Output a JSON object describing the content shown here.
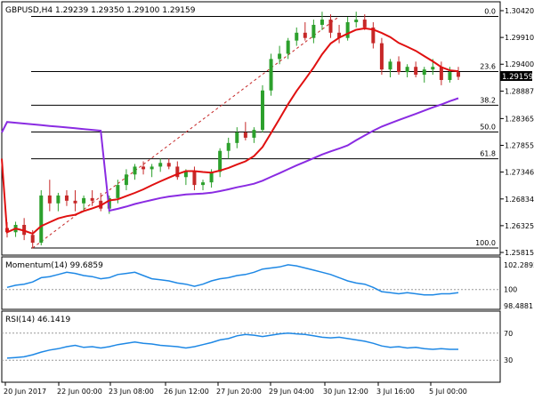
{
  "main_panel": {
    "header": "GBPUSD,H4  1.29239 1.29350 1.29100 1.29159",
    "price_axis": [
      "1.30420",
      "1.29910",
      "1.29400",
      "1.28887",
      "1.28365",
      "1.27855",
      "1.27346",
      "1.26834",
      "1.26325",
      "1.25815"
    ],
    "current_price": "1.29159",
    "fib_labels": [
      "0.0",
      "23.6",
      "38.2",
      "50.0",
      "61.8",
      "100.0"
    ]
  },
  "momentum_panel": {
    "header": "Momentum(14) 99.6859",
    "axis": [
      "102.2892",
      "100",
      "98.4881"
    ]
  },
  "rsi_panel": {
    "header": "RSI(14) 46.1419",
    "axis": [
      "70",
      "30"
    ]
  },
  "time_axis": [
    "20 Jun 2017",
    "22 Jun 00:00",
    "23 Jun 08:00",
    "26 Jun 12:00",
    "27 Jun 20:00",
    "29 Jun 04:00",
    "30 Jun 12:00",
    "3 Jul 16:00",
    "5 Jul 00:00"
  ],
  "colors": {
    "bull_candle": "#2ca02c",
    "bear_candle": "#c62828",
    "ma_fast": "#e01010",
    "ma_slow": "#8a2be2",
    "indicator": "#1e88e5",
    "price_box": "#000000"
  },
  "chart_data": [
    {
      "type": "candlestick",
      "title": "GBPUSD,H4",
      "ylim": [
        1.25815,
        1.3042
      ],
      "moving_averages": [
        "fast (red)",
        "slow (purple)"
      ],
      "fibonacci_levels": [
        {
          "label": "0.0",
          "price": 1.3031
        },
        {
          "label": "23.6",
          "price": 1.2926
        },
        {
          "label": "38.2",
          "price": 1.2862
        },
        {
          "label": "50.0",
          "price": 1.2811
        },
        {
          "label": "61.8",
          "price": 1.276
        },
        {
          "label": "100.0",
          "price": 1.259
        }
      ],
      "last_close": 1.29159,
      "candles": [
        [
          1.2628,
          1.2639,
          1.261,
          1.262
        ],
        [
          1.262,
          1.264,
          1.2611,
          1.2634
        ],
        [
          1.2634,
          1.2647,
          1.2605,
          1.2615
        ],
        [
          1.2615,
          1.2624,
          1.2589,
          1.26
        ],
        [
          1.26,
          1.27,
          1.2595,
          1.269
        ],
        [
          1.269,
          1.272,
          1.266,
          1.2675
        ],
        [
          1.2675,
          1.2695,
          1.266,
          1.269
        ],
        [
          1.269,
          1.27,
          1.267,
          1.268
        ],
        [
          1.268,
          1.27,
          1.266,
          1.2675
        ],
        [
          1.2675,
          1.269,
          1.266,
          1.2685
        ],
        [
          1.2685,
          1.27,
          1.267,
          1.268
        ],
        [
          1.268,
          1.2695,
          1.266,
          1.2665
        ],
        [
          1.2665,
          1.269,
          1.2655,
          1.2685
        ],
        [
          1.2685,
          1.272,
          1.2675,
          1.271
        ],
        [
          1.271,
          1.274,
          1.27,
          1.273
        ],
        [
          1.273,
          1.275,
          1.272,
          1.2745
        ],
        [
          1.2745,
          1.2755,
          1.273,
          1.274
        ],
        [
          1.274,
          1.275,
          1.2725,
          1.2745
        ],
        [
          1.2745,
          1.276,
          1.2735,
          1.2752
        ],
        [
          1.2752,
          1.276,
          1.274,
          1.2745
        ],
        [
          1.2745,
          1.2755,
          1.272,
          1.2725
        ],
        [
          1.2725,
          1.274,
          1.271,
          1.2735
        ],
        [
          1.2735,
          1.2745,
          1.27,
          1.271
        ],
        [
          1.271,
          1.272,
          1.27,
          1.2715
        ],
        [
          1.2715,
          1.274,
          1.2705,
          1.2735
        ],
        [
          1.2735,
          1.278,
          1.2725,
          1.2775
        ],
        [
          1.2775,
          1.28,
          1.276,
          1.279
        ],
        [
          1.279,
          1.282,
          1.278,
          1.281
        ],
        [
          1.281,
          1.283,
          1.2795,
          1.28
        ],
        [
          1.28,
          1.282,
          1.279,
          1.2815
        ],
        [
          1.2815,
          1.29,
          1.281,
          1.289
        ],
        [
          1.289,
          1.296,
          1.288,
          1.295
        ],
        [
          1.295,
          1.2975,
          1.294,
          1.296
        ],
        [
          1.296,
          1.299,
          1.295,
          1.2985
        ],
        [
          1.2985,
          1.301,
          1.2975,
          1.3
        ],
        [
          1.3,
          1.302,
          1.2985,
          1.299
        ],
        [
          1.299,
          1.3025,
          1.298,
          1.3015
        ],
        [
          1.3015,
          1.304,
          1.3005,
          1.3025
        ],
        [
          1.3025,
          1.3035,
          1.299,
          1.3
        ],
        [
          1.3,
          1.3015,
          1.298,
          1.299
        ],
        [
          1.299,
          1.303,
          1.2985,
          1.302
        ],
        [
          1.302,
          1.304,
          1.301,
          1.3025
        ],
        [
          1.3025,
          1.3035,
          1.3005,
          1.301
        ],
        [
          1.301,
          1.302,
          1.297,
          1.298
        ],
        [
          1.298,
          1.299,
          1.292,
          1.293
        ],
        [
          1.293,
          1.295,
          1.2915,
          1.2945
        ],
        [
          1.2945,
          1.2955,
          1.292,
          1.2925
        ],
        [
          1.2925,
          1.294,
          1.2915,
          1.2935
        ],
        [
          1.2935,
          1.2945,
          1.2915,
          1.292
        ],
        [
          1.292,
          1.2935,
          1.2905,
          1.293
        ],
        [
          1.293,
          1.295,
          1.292,
          1.2935
        ],
        [
          1.2935,
          1.2945,
          1.29,
          1.291
        ],
        [
          1.291,
          1.2935,
          1.2905,
          1.2925
        ],
        [
          1.2925,
          1.2935,
          1.291,
          1.2916
        ]
      ]
    },
    {
      "type": "line",
      "title": "Momentum(14)",
      "ylim": [
        98.4881,
        102.2892
      ],
      "reference": 100,
      "values": [
        100.2,
        100.4,
        100.5,
        100.7,
        101.1,
        101.2,
        101.4,
        101.6,
        101.5,
        101.3,
        101.2,
        101.0,
        101.1,
        101.4,
        101.5,
        101.6,
        101.3,
        101.0,
        100.9,
        100.8,
        100.6,
        100.5,
        100.3,
        100.5,
        100.8,
        101.0,
        101.1,
        101.3,
        101.4,
        101.6,
        101.9,
        102.0,
        102.1,
        102.3,
        102.2,
        102.0,
        101.8,
        101.6,
        101.4,
        101.1,
        100.8,
        100.6,
        100.5,
        100.2,
        99.8,
        99.7,
        99.6,
        99.7,
        99.6,
        99.5,
        99.5,
        99.6,
        99.6,
        99.7
      ]
    },
    {
      "type": "line",
      "title": "RSI(14)",
      "ylim": [
        0,
        100
      ],
      "reference_levels": [
        70,
        30
      ],
      "values": [
        33,
        34,
        35,
        38,
        42,
        45,
        47,
        50,
        52,
        49,
        50,
        48,
        50,
        53,
        55,
        57,
        55,
        54,
        52,
        51,
        50,
        48,
        50,
        53,
        56,
        60,
        62,
        66,
        68,
        67,
        65,
        67,
        69,
        70,
        69,
        68,
        66,
        64,
        63,
        64,
        62,
        60,
        58,
        55,
        51,
        49,
        50,
        48,
        49,
        47,
        46,
        47,
        46,
        46
      ]
    }
  ]
}
